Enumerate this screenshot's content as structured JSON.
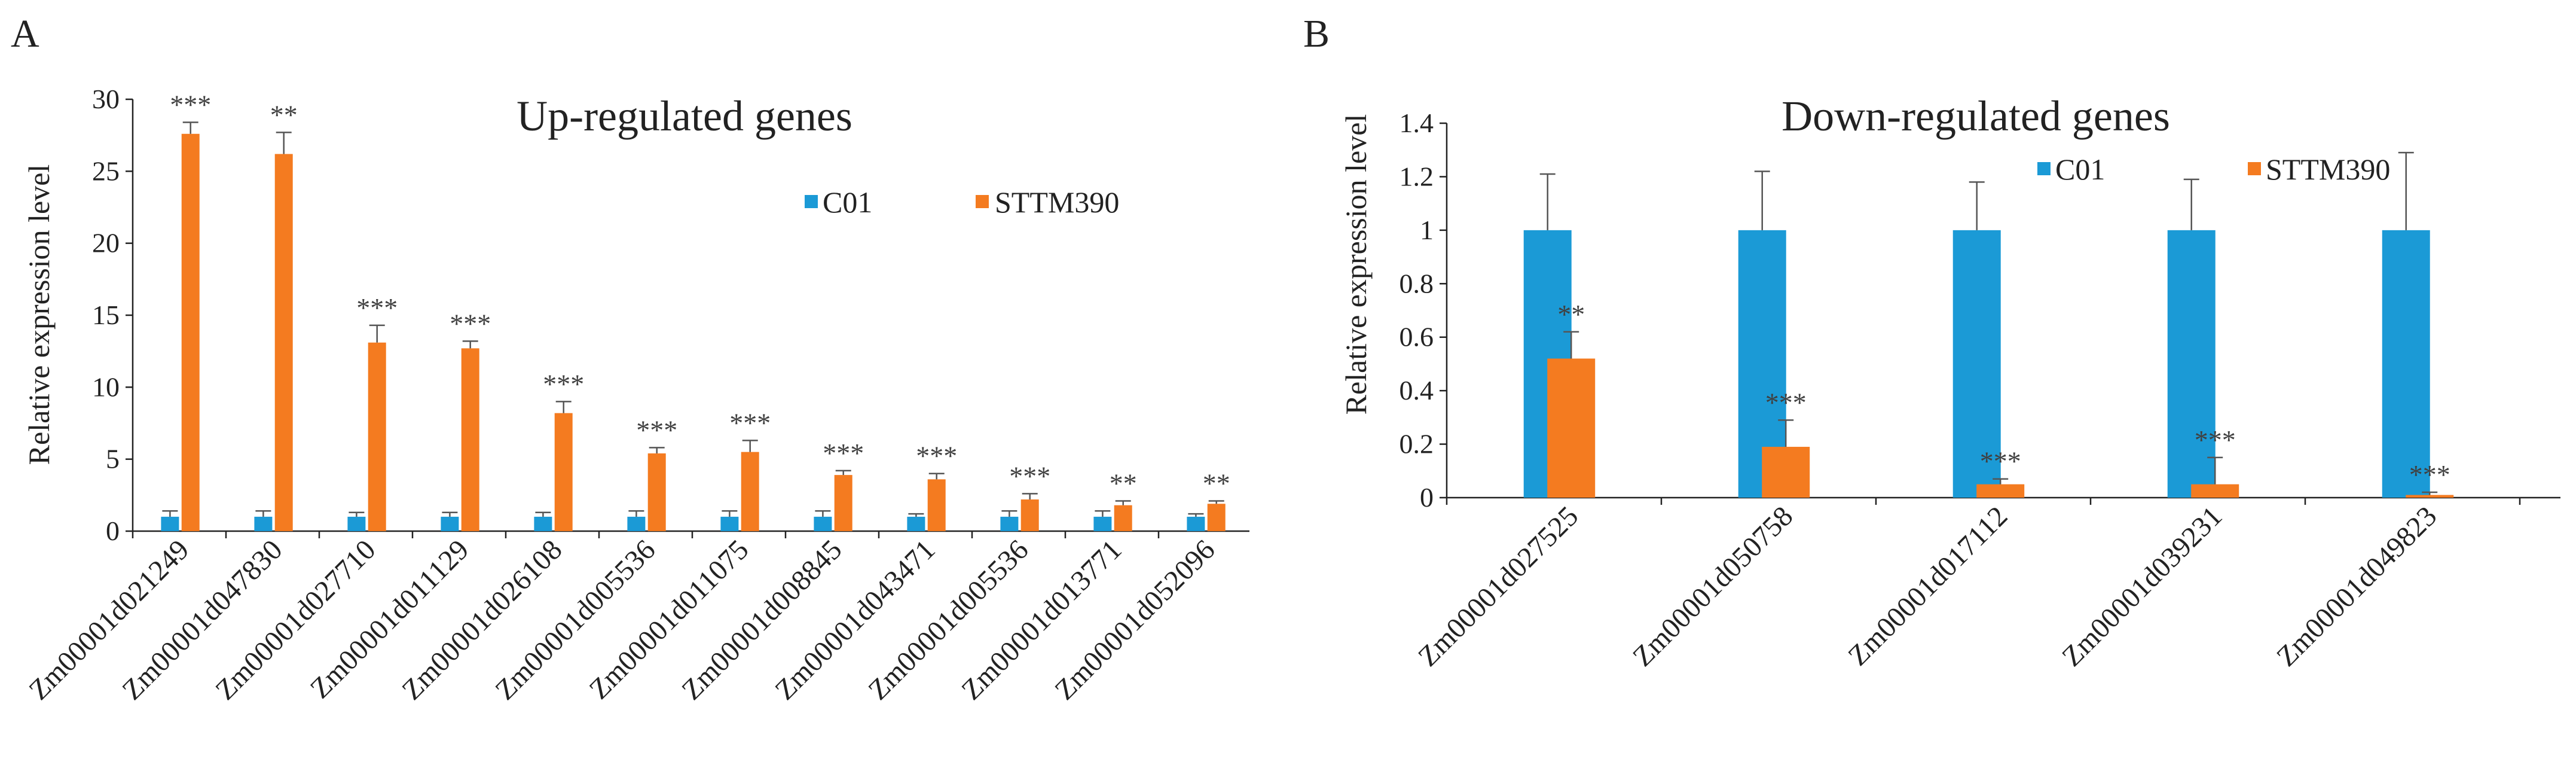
{
  "colors": {
    "C01": "#1b9ad6",
    "STTM390": "#f47b20",
    "axis": "#222222",
    "errorbar": "#555555"
  },
  "chart_data": [
    {
      "panel": "A",
      "type": "bar",
      "title": "Up-regulated  genes",
      "xlabel": "",
      "ylabel": "Relative  expression level",
      "ylim": [
        0,
        30
      ],
      "yticks": [
        0,
        5,
        10,
        15,
        20,
        25,
        30
      ],
      "legend_position": "top-right",
      "categories": [
        "Zm00001d021249",
        "Zm00001d047830",
        "Zm00001d027710",
        "Zm00001d011129",
        "Zm00001d026108",
        "Zm00001d005536",
        "Zm00001d011075",
        "Zm00001d008845",
        "Zm00001d043471",
        "Zm00001d005536",
        "Zm00001d013771",
        "Zm00001d052096"
      ],
      "series": [
        {
          "name": "C01",
          "values": [
            1,
            1,
            1,
            1,
            1,
            1,
            1,
            1,
            1,
            1,
            1,
            1
          ],
          "errors": [
            0.4,
            0.4,
            0.3,
            0.3,
            0.3,
            0.4,
            0.4,
            0.4,
            0.2,
            0.4,
            0.4,
            0.2
          ]
        },
        {
          "name": "STTM390",
          "values": [
            27.6,
            26.2,
            13.1,
            12.7,
            8.2,
            5.4,
            5.5,
            3.9,
            3.6,
            2.2,
            1.8,
            1.9
          ],
          "errors": [
            0.8,
            1.5,
            1.2,
            0.5,
            0.8,
            0.4,
            0.8,
            0.3,
            0.4,
            0.4,
            0.3,
            0.2
          ]
        }
      ],
      "significance": [
        "***",
        "**",
        "***",
        "***",
        "***",
        "***",
        "***",
        "***",
        "***",
        "***",
        "**",
        "**"
      ]
    },
    {
      "panel": "B",
      "type": "bar",
      "title": "Down-regulated  genes",
      "xlabel": "",
      "ylabel": "Relative  expression level",
      "ylim": [
        0,
        1.4
      ],
      "yticks": [
        "0",
        "0.2",
        "0.4",
        "0.6",
        "0.8",
        "1",
        "1.2",
        "1.4"
      ],
      "legend_position": "top-right",
      "categories": [
        "Zm00001d027525",
        "Zm00001d050758",
        "Zm00001d017112",
        "Zm00001d039231",
        "Zm00001d049823"
      ],
      "series": [
        {
          "name": "C01",
          "values": [
            1,
            1,
            1,
            1,
            1
          ],
          "errors": [
            0.21,
            0.22,
            0.18,
            0.19,
            0.29
          ]
        },
        {
          "name": "STTM390",
          "values": [
            0.52,
            0.19,
            0.05,
            0.05,
            0.01
          ],
          "errors": [
            0.1,
            0.1,
            0.02,
            0.1,
            0.01
          ]
        }
      ],
      "significance": [
        "**",
        "***",
        "***",
        "***",
        "***"
      ]
    }
  ]
}
